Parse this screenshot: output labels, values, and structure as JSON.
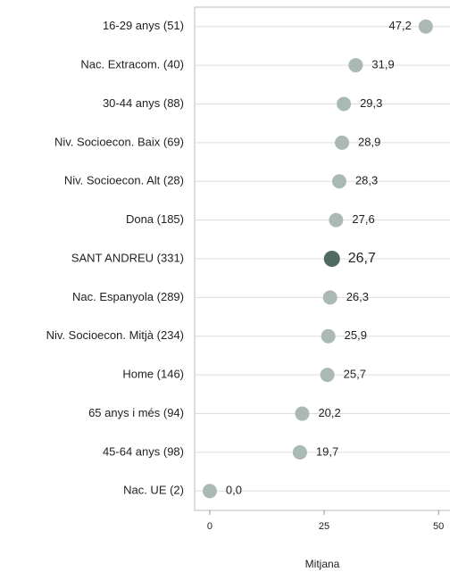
{
  "chart_data": {
    "type": "dot",
    "categories": [
      "16-29 anys (51)",
      "Nac. Extracom. (40)",
      "30-44 anys (88)",
      "Niv. Socioecon. Baix (69)",
      "Niv. Socioecon. Alt (28)",
      "Dona (185)",
      "SANT ANDREU (331)",
      "Nac. Espanyola (289)",
      "Niv. Socioecon. Mitjà (234)",
      "Home (146)",
      "65 anys i més (94)",
      "45-64 anys (98)",
      "Nac. UE (2)"
    ],
    "values": [
      47.2,
      31.9,
      29.3,
      28.9,
      28.3,
      27.6,
      26.7,
      26.3,
      25.9,
      25.7,
      20.2,
      19.7,
      0.0
    ],
    "value_labels": [
      "47,2",
      "31,9",
      "29,3",
      "28,9",
      "28,3",
      "27,6",
      "26,7",
      "26,3",
      "25,9",
      "25,7",
      "20,2",
      "19,7",
      "0,0"
    ],
    "color": "#aab9b4",
    "highlight": 6,
    "highlight_color": "#506a5f",
    "highlight_text_color": "#d9391f",
    "xlabel": "Mitjana",
    "xlim": [
      -3.3,
      52.5
    ],
    "xticks": [
      0,
      25,
      50
    ],
    "grid": true
  }
}
